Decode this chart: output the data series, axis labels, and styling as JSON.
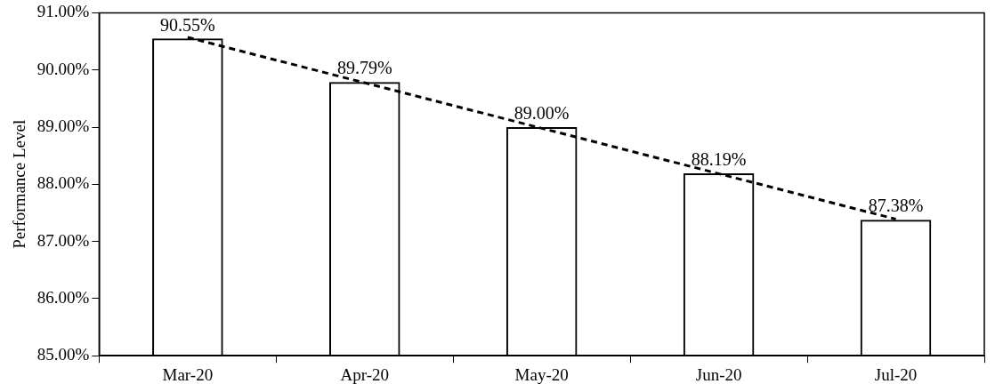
{
  "chart_data": {
    "type": "bar",
    "ylabel": "Performance Level",
    "categories": [
      "Mar-20",
      "Apr-20",
      "May-20",
      "Jun-20",
      "Jul-20"
    ],
    "series": [
      {
        "color": "#000000",
        "values": [
          90.55,
          89.79,
          89.0,
          88.19,
          87.38
        ],
        "value_labels": [
          "90.55%",
          "89.79%",
          "89.00%",
          "88.19%",
          "87.38%"
        ]
      },
      {
        "type": "line",
        "color": "#000000",
        "line_style": "dashed",
        "marker": "none",
        "x": [
          "Mar-20",
          "Jul-20"
        ],
        "values": [
          90.57,
          87.39
        ]
      }
    ],
    "ylim": [
      85,
      91
    ],
    "yticks": [
      {
        "value": 85,
        "label": "85.00%"
      },
      {
        "value": 86,
        "label": "86.00%"
      },
      {
        "value": 87,
        "label": "87.00%"
      },
      {
        "value": 88,
        "label": "88.00%"
      },
      {
        "value": 89,
        "label": "89.00%"
      },
      {
        "value": 90,
        "label": "90.00%"
      },
      {
        "value": 91,
        "label": "91.00%"
      }
    ],
    "grid": false,
    "legend": false
  }
}
